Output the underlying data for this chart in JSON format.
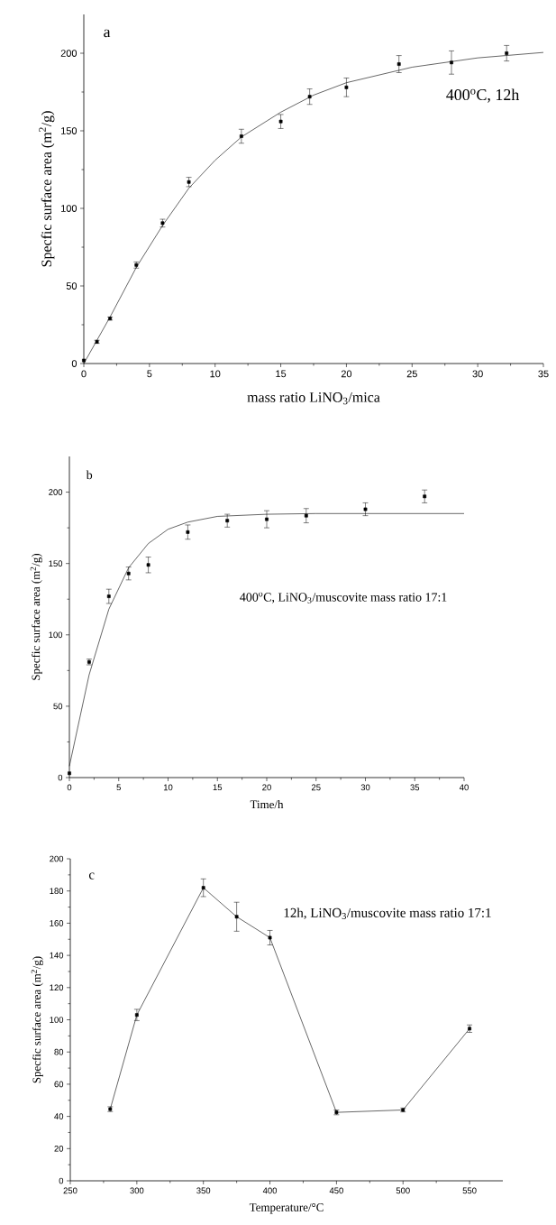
{
  "chart_data": [
    {
      "type": "scatter",
      "xlabel": "mass ratio LiNO$_{3}$/mica",
      "ylabel": "Specfic surface area (m$^{2}$/g)",
      "annotations": [
        "a",
        "400$^{o}$C, 12h"
      ],
      "xlim": [
        0,
        35
      ],
      "ylim": [
        0,
        225
      ],
      "xticks": [
        0,
        5,
        10,
        15,
        20,
        25,
        30,
        35
      ],
      "yticks": [
        0,
        50,
        100,
        150,
        200
      ],
      "grid": false,
      "series": [
        {
          "marker": "square",
          "color": "#000000",
          "x": [
            0,
            1,
            2,
            4,
            6,
            8,
            12,
            15,
            17.2,
            20,
            24,
            28,
            32.2
          ],
          "values": [
            2,
            14,
            29,
            63.5,
            90.5,
            117,
            146.5,
            156,
            172,
            178,
            193,
            194,
            200
          ],
          "errors": [
            null,
            1,
            1,
            2,
            2.5,
            3,
            4.5,
            4.5,
            5,
            6,
            5.5,
            7.5,
            5
          ]
        },
        {
          "type": "line",
          "marker": "none",
          "color": "#000000",
          "x": [
            0,
            2,
            4,
            6,
            8,
            10,
            12,
            15,
            17.5,
            20,
            25,
            30,
            35
          ],
          "values": [
            0,
            30,
            62,
            89,
            113,
            131,
            146,
            162,
            173,
            181,
            191,
            197,
            200.5
          ]
        }
      ]
    },
    {
      "type": "scatter",
      "xlabel": "Time/h",
      "ylabel": "Specfic surface area (m$^{2}$/g)",
      "annotations": [
        "b",
        "400$^{o}$C, LiNO$_{3}$/muscovite mass ratio 17:1"
      ],
      "xlim": [
        0,
        40
      ],
      "ylim": [
        0,
        225
      ],
      "xticks": [
        0,
        5,
        10,
        15,
        20,
        25,
        30,
        35,
        40
      ],
      "yticks": [
        0,
        50,
        100,
        150,
        200
      ],
      "grid": false,
      "series": [
        {
          "marker": "square",
          "color": "#000000",
          "x": [
            0,
            2,
            4,
            6,
            8,
            12,
            16,
            20,
            24,
            30,
            36
          ],
          "values": [
            3,
            81,
            127,
            143,
            149,
            172,
            180,
            181,
            183.5,
            188,
            197
          ],
          "errors": [
            null,
            2,
            5,
            4.5,
            5.5,
            5,
            4.5,
            6,
            5,
            4.5,
            4.5
          ]
        },
        {
          "type": "line",
          "marker": "none",
          "color": "#000000",
          "x": [
            0,
            2,
            4,
            6,
            8,
            10,
            12,
            15,
            20,
            25,
            40
          ],
          "values": [
            8,
            72,
            118,
            147,
            164,
            174,
            179,
            183,
            184.5,
            185,
            185
          ]
        }
      ]
    },
    {
      "type": "line",
      "xlabel": "Temperature/°C",
      "ylabel": "Specfic surface area (m$^{2}$/g)",
      "annotations": [
        "c",
        "12h, LiNO$_{3}$/muscovite mass ratio 17:1"
      ],
      "xlim": [
        250,
        575
      ],
      "ylim": [
        0,
        200
      ],
      "xticks": [
        250,
        300,
        350,
        400,
        450,
        500,
        550
      ],
      "yticks": [
        0,
        20,
        40,
        60,
        80,
        100,
        120,
        140,
        160,
        180,
        200
      ],
      "grid": false,
      "series": [
        {
          "marker": "square",
          "color": "#000000",
          "x": [
            280,
            300,
            350,
            375,
            400,
            450,
            500,
            550
          ],
          "values": [
            44.5,
            103,
            182,
            164,
            151,
            42.5,
            44,
            94.5
          ],
          "errors": [
            1.5,
            3.5,
            5.5,
            9,
            4.5,
            1.5,
            1.2,
            2.3
          ]
        }
      ]
    }
  ]
}
